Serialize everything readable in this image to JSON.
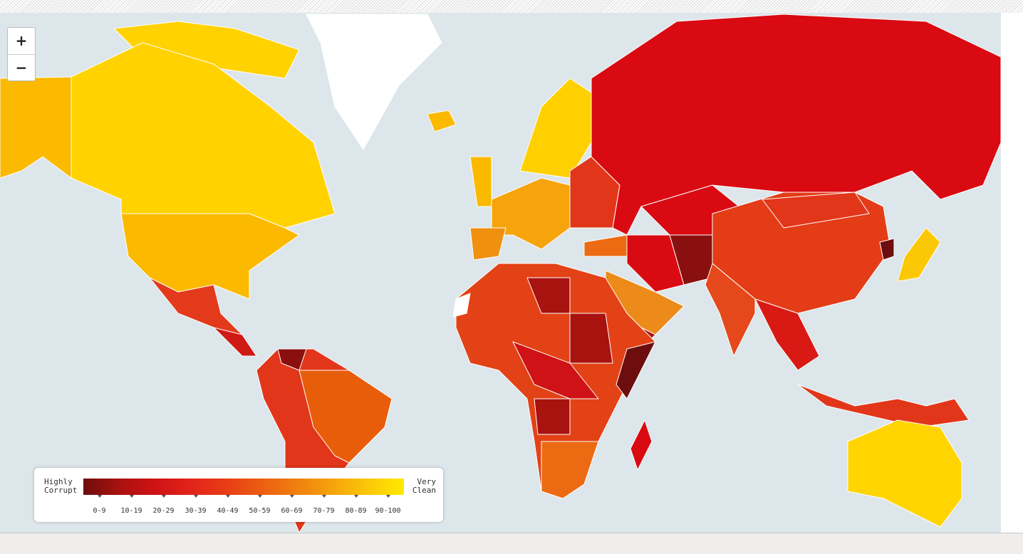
{
  "zoom": {
    "in": "+",
    "out": "−"
  },
  "legend": {
    "low_label": [
      "Highly",
      "Corrupt"
    ],
    "high_label": [
      "Very",
      "Clean"
    ],
    "ranges": [
      "0-9",
      "10-19",
      "20-29",
      "30-39",
      "40-49",
      "50-59",
      "60-69",
      "70-79",
      "80-89",
      "90-100"
    ],
    "colors": [
      "#6e0d0d",
      "#a8120f",
      "#cf1215",
      "#e2231a",
      "#e83d17",
      "#ec5e12",
      "#f0800f",
      "#f6a40b",
      "#fbc808",
      "#ffe900"
    ]
  }
}
